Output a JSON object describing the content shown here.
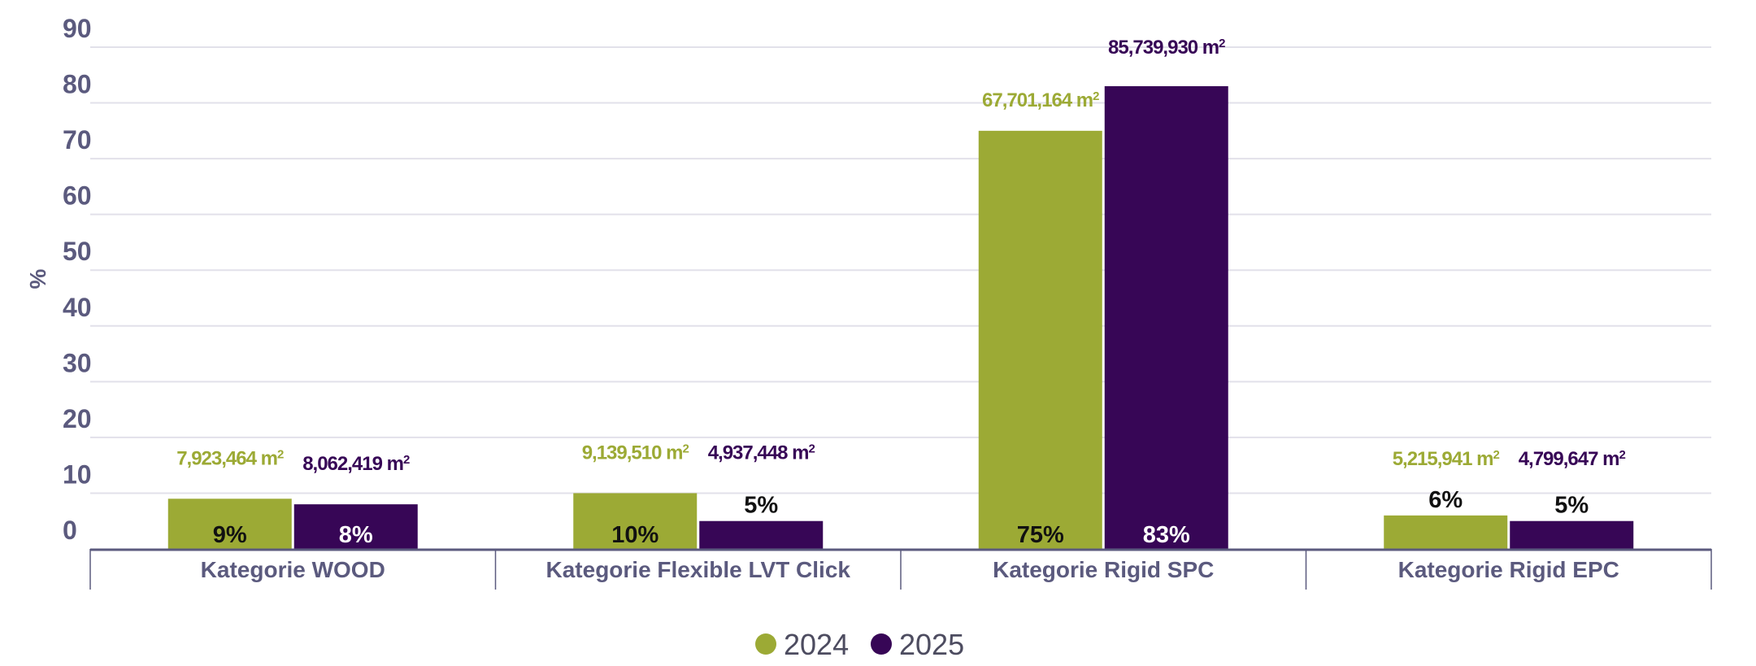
{
  "chart_data": {
    "type": "bar",
    "title": "",
    "xlabel": "",
    "ylabel": "%",
    "ylim": [
      0,
      90
    ],
    "yticks": [
      0,
      10,
      20,
      30,
      40,
      50,
      60,
      70,
      80,
      90
    ],
    "grid": true,
    "legend_position": "bottom",
    "categories": [
      "Kategorie WOOD",
      "Kategorie Flexible LVT Click",
      "Kategorie Rigid SPC",
      "Kategorie Rigid EPC"
    ],
    "series": [
      {
        "name": "2024",
        "color": "#9caa35",
        "values": [
          9,
          10,
          75,
          6
        ],
        "percent_labels": [
          "9%",
          "10%",
          "75%",
          "6%"
        ],
        "area_labels": [
          "7,923,464 m",
          "9,139,510 m",
          "67,701,164 m",
          "5,215,941 m"
        ]
      },
      {
        "name": "2025",
        "color": "#370656",
        "values": [
          8,
          5,
          83,
          5
        ],
        "percent_labels": [
          "8%",
          "5%",
          "83%",
          "5%"
        ],
        "area_labels": [
          "8,062,419 m",
          "4,937,448 m",
          "85,739,930 m",
          "4,799,647 m"
        ]
      }
    ],
    "unit_superscript": "2"
  }
}
